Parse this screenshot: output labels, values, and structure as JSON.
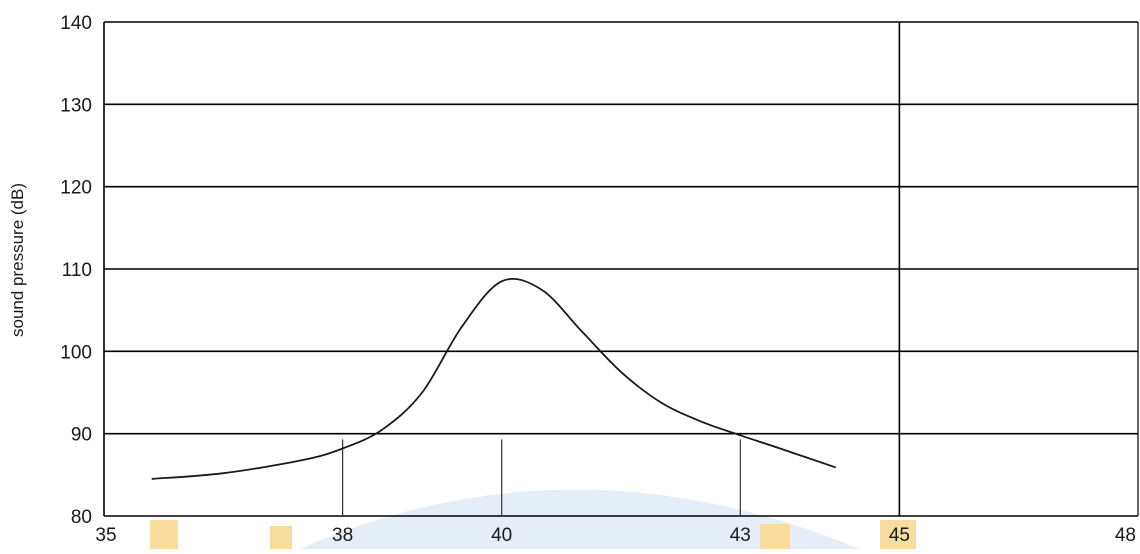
{
  "chart_data": {
    "type": "line",
    "title": "",
    "xlabel": "",
    "ylabel": "sound   pressure (dB)",
    "xlim": [
      35,
      48
    ],
    "ylim": [
      80,
      140
    ],
    "x_ticks": [
      35,
      38,
      40,
      43,
      45,
      48
    ],
    "x_tick_labels": [
      "35",
      "38",
      "40",
      "43",
      "45",
      "48"
    ],
    "y_ticks": [
      80,
      90,
      100,
      110,
      120,
      130,
      140
    ],
    "y_tick_labels": [
      "80",
      "90",
      "100",
      "110",
      "120",
      "130",
      "140"
    ],
    "grid": "horizontal at every 10 dB",
    "vertical_lines": [
      45
    ],
    "markers": [
      38,
      40,
      43
    ],
    "series": [
      {
        "x": [
          35.6,
          36.5,
          37.5,
          38.0,
          38.5,
          39.0,
          39.5,
          40.0,
          40.5,
          41.0,
          41.5,
          42.0,
          42.5,
          43.0,
          43.5,
          44.2
        ],
        "y": [
          84.5,
          85.2,
          86.8,
          88.2,
          90.5,
          95.0,
          103.0,
          108.5,
          107.5,
          102.5,
          97.5,
          93.8,
          91.5,
          89.8,
          88.2,
          85.9
        ]
      }
    ],
    "colors": {
      "line": "#1a1a1a",
      "grid": "#000000",
      "tick_label": "#1a1a1a",
      "watermark_yellow": "#f2c14e",
      "watermark_blue": "#7aa7d6"
    }
  }
}
